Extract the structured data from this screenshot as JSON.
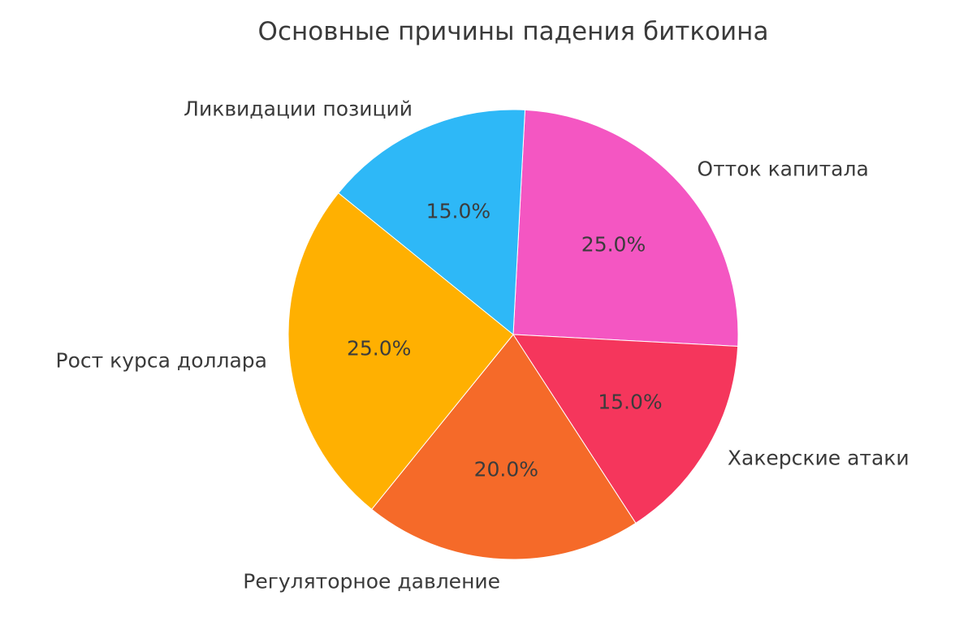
{
  "page": {
    "background": "#ffffff",
    "text_color": "#3a3a3a"
  },
  "chart_data": {
    "type": "pie",
    "title": "Основные причины падения биткоина",
    "slices": [
      {
        "label": "Отток капитала",
        "value": 25.0,
        "pct_label": "25.0%",
        "color": "#f456c2"
      },
      {
        "label": "Хакерские атаки",
        "value": 15.0,
        "pct_label": "15.0%",
        "color": "#f5365c"
      },
      {
        "label": "Регуляторное давление",
        "value": 20.0,
        "pct_label": "20.0%",
        "color": "#f56a29"
      },
      {
        "label": "Рост курса доллара",
        "value": 25.0,
        "pct_label": "25.0%",
        "color": "#ffb001"
      },
      {
        "label": "Ликвидации позиций",
        "value": 15.0,
        "pct_label": "15.0%",
        "color": "#2eb8f7"
      }
    ],
    "start_angle_deg": 87,
    "direction": "clockwise",
    "legend": "none",
    "label_radius_ratio": 1.1,
    "pct_radius_ratio": 0.6
  }
}
